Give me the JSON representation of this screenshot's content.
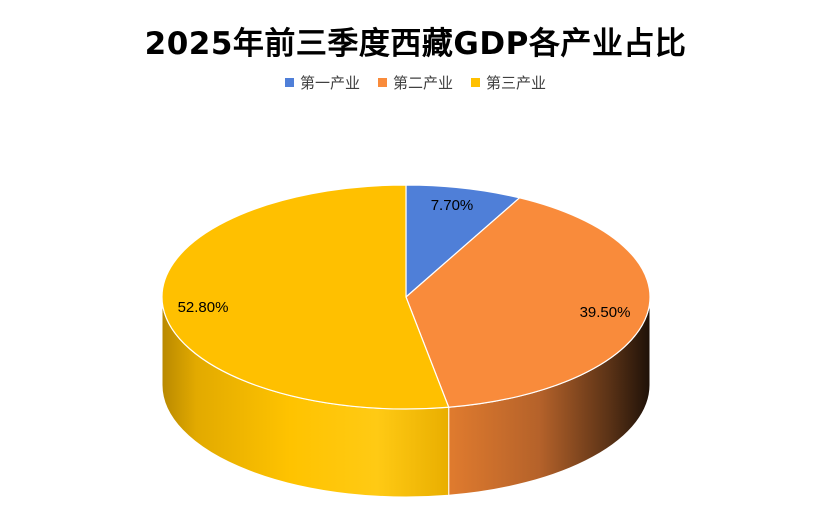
{
  "chart_data": {
    "type": "pie",
    "title": "2025年前三季度西藏GDP各产业占比",
    "categories": [
      "第一产业",
      "第二产业",
      "第三产业"
    ],
    "values": [
      7.7,
      39.5,
      52.8
    ],
    "data_labels": [
      "7.70%",
      "39.50%",
      "52.80%"
    ],
    "colors": [
      "#4F7FD8",
      "#F98B3B",
      "#FFC000"
    ],
    "legend_position": "top",
    "style": "3d"
  }
}
